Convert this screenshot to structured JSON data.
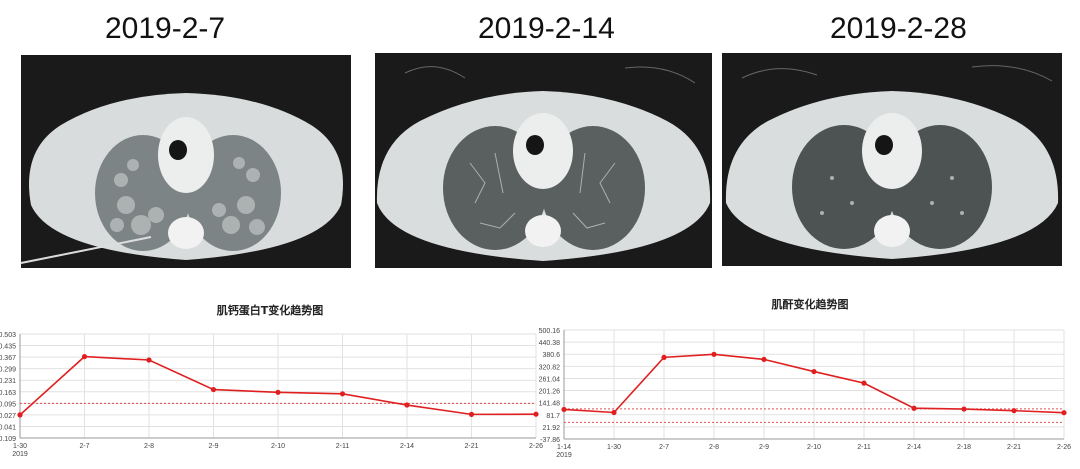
{
  "panels": [
    {
      "date": "2019-2-7"
    },
    {
      "date": "2019-2-14"
    },
    {
      "date": "2019-2-28"
    }
  ],
  "chart_data": [
    {
      "type": "line",
      "title": "肌钙蛋白T变化趋势图",
      "yticks": [
        "0.503",
        "0.435",
        "0.367",
        "0.299",
        "0.231",
        "0.163",
        "0.095",
        "0.027",
        "-0.041",
        "-0.109"
      ],
      "ylim": [
        -0.109,
        0.503
      ],
      "categories": [
        "1-30",
        "2-7",
        "2-8",
        "2-9",
        "2-10",
        "2-11",
        "2-14",
        "2-21",
        "2-26"
      ],
      "x_sublabel": "2019",
      "values": [
        0.027,
        0.37,
        0.35,
        0.176,
        0.16,
        0.151,
        0.085,
        0.03,
        0.031
      ],
      "reference_lines": [
        0.095
      ],
      "line_color": "#e02020",
      "grid": true
    },
    {
      "type": "line",
      "title": "肌酐变化趋势图",
      "yticks": [
        "500.16",
        "440.38",
        "380.6",
        "320.82",
        "261.04",
        "201.26",
        "141.48",
        "81.7",
        "21.92",
        "-37.86"
      ],
      "ylim": [
        -37.86,
        500.16
      ],
      "categories": [
        "1-14",
        "1-30",
        "2-7",
        "2-8",
        "2-9",
        "2-10",
        "2-11",
        "2-14",
        "2-18",
        "2-21",
        "2-26"
      ],
      "x_sublabel": "2019",
      "values": [
        108,
        93,
        365,
        380,
        355,
        295,
        238,
        114,
        110,
        102,
        92
      ],
      "reference_lines": [
        111,
        44
      ],
      "line_color": "#e02020",
      "grid": true
    }
  ]
}
